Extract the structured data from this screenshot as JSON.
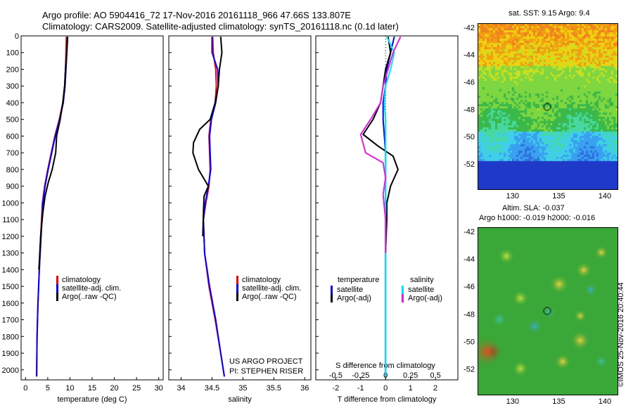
{
  "header": {
    "line1": "Argo profile: AO 5904416_72 17-Nov-2016 20161118_966 47.66S 133.807E",
    "line2": "Climatology: CARS2009. Satellite-adjusted climatology: synTS_20161118.nc (0.1d later)"
  },
  "credits": {
    "project": "US ARGO PROJECT",
    "pi": "PI: STEPHEN RISER"
  },
  "timestamp": "©IMOS 25-Nov-2016 20:40:44",
  "map_sst": {
    "title": "sat. SST: 9.15 Argo: 9.4",
    "lat_ticks": [
      "-42",
      "-44",
      "-46",
      "-48",
      "-50",
      "-52"
    ],
    "lon_ticks": [
      "130",
      "135",
      "140"
    ]
  },
  "map_sla": {
    "title1": "Altim. SLA: -0.037",
    "title2": "Argo h1000: -0.019 h2000: -0.016",
    "lat_ticks": [
      "-42",
      "-44",
      "-46",
      "-48",
      "-50",
      "-52"
    ],
    "lon_ticks": [
      "130",
      "135",
      "140"
    ]
  },
  "legends": {
    "temp": [
      "climatology",
      "satellite-adj. clim.",
      "Argo(..raw -QC)"
    ],
    "sal": [
      "climatology",
      "satellite-adj. clim.",
      "Argo(..raw -QC)"
    ],
    "diff_temp_head": "temperature",
    "diff_sal_head": "salinity",
    "diff_temp": [
      "satellite",
      "Argo(-adj)"
    ],
    "diff_sal": [
      "satellite",
      "Argo(-adj)"
    ]
  },
  "colors": {
    "climatology": "#ff0000",
    "satellite": "#0000ff",
    "argo": "#000000",
    "sal_sat": "#00e5ff",
    "sal_argo": "#e020e0"
  },
  "chart_data": [
    {
      "type": "line",
      "xlabel": "temperature (deg C)",
      "xlim": [
        -1,
        31
      ],
      "xticks": [
        0,
        5,
        10,
        15,
        20,
        25,
        30
      ],
      "ylim": [
        0,
        2060
      ],
      "yticks": [
        0,
        100,
        200,
        300,
        400,
        500,
        600,
        700,
        800,
        900,
        1000,
        1100,
        1200,
        1300,
        1400,
        1500,
        1600,
        1700,
        1800,
        1900,
        2000
      ],
      "series": [
        {
          "name": "climatology",
          "color": "#ff0000",
          "x": [
            9.2,
            9.1,
            9.0,
            8.8,
            8.4,
            7.6,
            6.6,
            5.8,
            5.0,
            4.3,
            3.8,
            3.4,
            3.1,
            2.8,
            2.6,
            2.5
          ],
          "y": [
            5,
            100,
            200,
            300,
            400,
            500,
            600,
            700,
            800,
            900,
            1000,
            1200,
            1400,
            1600,
            1800,
            2040
          ]
        },
        {
          "name": "satellite-adj. clim.",
          "color": "#0000ff",
          "x": [
            9.5,
            9.3,
            9.1,
            8.9,
            8.5,
            7.7,
            6.7,
            5.9,
            5.1,
            4.4,
            3.9,
            3.5,
            3.1,
            2.8,
            2.6,
            2.5
          ],
          "y": [
            5,
            100,
            200,
            300,
            400,
            500,
            600,
            700,
            800,
            900,
            1000,
            1200,
            1400,
            1600,
            1800,
            2040
          ]
        },
        {
          "name": "Argo(..raw -QC)",
          "color": "#000000",
          "x": [
            9.4,
            9.3,
            9.0,
            8.8,
            8.4,
            7.8,
            7.0,
            6.9,
            6.8,
            6.0,
            5.1,
            4.4,
            3.9,
            3.4,
            3.0
          ],
          "y": [
            5,
            100,
            200,
            300,
            400,
            500,
            600,
            650,
            700,
            800,
            880,
            960,
            1060,
            1200,
            1400
          ]
        }
      ]
    },
    {
      "type": "line",
      "xlabel": "salinity",
      "xlim": [
        33.8,
        36.1
      ],
      "xticks": [
        34,
        34.5,
        35,
        35.5,
        36
      ],
      "ylim": [
        0,
        2060
      ],
      "series": [
        {
          "name": "climatology",
          "color": "#ff0000",
          "x": [
            34.51,
            34.52,
            34.56,
            34.57,
            34.55,
            34.48,
            34.45,
            34.46,
            34.47,
            34.45,
            34.4,
            34.36,
            34.38,
            34.45,
            34.55,
            34.64,
            34.7
          ],
          "y": [
            5,
            100,
            200,
            300,
            400,
            500,
            600,
            700,
            800,
            900,
            1000,
            1100,
            1300,
            1500,
            1700,
            1900,
            2040
          ]
        },
        {
          "name": "satellite-adj. clim.",
          "color": "#0000ff",
          "x": [
            34.5,
            34.5,
            34.59,
            34.6,
            34.56,
            34.49,
            34.46,
            34.47,
            34.48,
            34.44,
            34.39,
            34.36,
            34.38,
            34.46,
            34.56,
            34.64,
            34.7
          ],
          "y": [
            5,
            100,
            200,
            300,
            400,
            500,
            600,
            700,
            800,
            900,
            1000,
            1100,
            1300,
            1500,
            1700,
            1900,
            2040
          ]
        },
        {
          "name": "Argo(..raw -QC)",
          "color": "#000000",
          "x": [
            34.64,
            34.66,
            34.62,
            34.6,
            34.55,
            34.47,
            34.3,
            34.2,
            34.19,
            34.28,
            34.44,
            34.37,
            34.36,
            34.35
          ],
          "y": [
            5,
            100,
            200,
            300,
            400,
            500,
            560,
            640,
            700,
            800,
            900,
            960,
            1060,
            1200
          ]
        }
      ]
    },
    {
      "type": "line",
      "xlabel": "T difference from climatology",
      "xlabel_top": "S difference from climatology",
      "xlim": [
        -2.8,
        2.9
      ],
      "xticks": [
        -2,
        -1,
        0,
        1,
        2
      ],
      "xticks_top": [
        "-0.5",
        "-0.25",
        "0",
        "0.25",
        "0.5"
      ],
      "ylim": [
        0,
        2060
      ],
      "series": [
        {
          "name": "satellite",
          "color": "#0000ff",
          "x": [
            0.35,
            0.2,
            0.05,
            0.0,
            -0.1,
            -0.1,
            -0.05,
            0.0,
            0.0,
            0.0,
            0.0,
            0.0,
            0.0
          ],
          "y": [
            5,
            100,
            200,
            300,
            400,
            500,
            600,
            700,
            800,
            1000,
            1400,
            1800,
            2040
          ]
        },
        {
          "name": "Argo(-adj)",
          "color": "#000000",
          "x": [
            0.1,
            0.2,
            0.0,
            -0.1,
            -0.2,
            -0.5,
            -0.9,
            -0.3,
            0.3,
            0.5,
            0.2,
            0.05,
            0.05,
            0.0
          ],
          "y": [
            5,
            100,
            200,
            300,
            400,
            500,
            590,
            660,
            720,
            800,
            900,
            1000,
            1100,
            1300
          ]
        },
        {
          "name": "satellite",
          "color": "#00e5ff",
          "x": [
            0.05,
            0.35,
            0.2,
            0.0,
            -0.05,
            0.0,
            0.0,
            0.0,
            0.0,
            0.0,
            0.0,
            0.0,
            0.0
          ],
          "y": [
            5,
            100,
            200,
            300,
            400,
            500,
            600,
            700,
            800,
            1000,
            1400,
            1800,
            2040
          ]
        },
        {
          "name": "Argo(-adj)",
          "color": "#e020e0",
          "x": [
            0.6,
            0.3,
            0.1,
            -0.1,
            -0.2,
            -0.6,
            -1.0,
            -0.8,
            -0.1,
            0.0,
            -0.1,
            0.0,
            0.0
          ],
          "y": [
            5,
            100,
            200,
            300,
            400,
            500,
            590,
            700,
            760,
            850,
            950,
            1100,
            1300
          ]
        }
      ]
    }
  ]
}
